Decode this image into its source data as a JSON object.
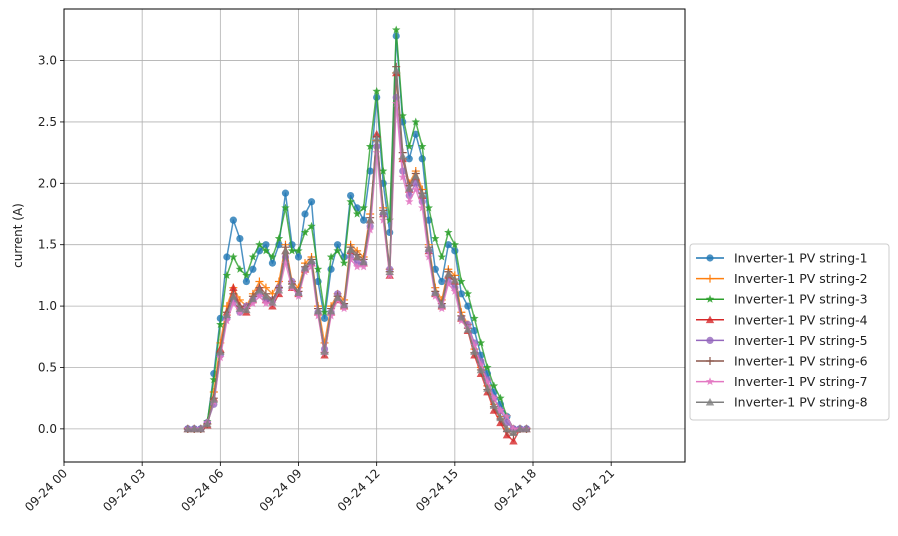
{
  "chart_data": {
    "type": "line",
    "title": "",
    "xlabel": "",
    "ylabel": "current (A)",
    "x_range": [
      "09-24 00:00",
      "09-24 23:50"
    ],
    "ylim": [
      -0.27,
      3.42
    ],
    "x_ticks": [
      {
        "hour": 0,
        "label": "09-24 00"
      },
      {
        "hour": 3,
        "label": "09-24 03"
      },
      {
        "hour": 6,
        "label": "09-24 06"
      },
      {
        "hour": 9,
        "label": "09-24 09"
      },
      {
        "hour": 12,
        "label": "09-24 12"
      },
      {
        "hour": 15,
        "label": "09-24 15"
      },
      {
        "hour": 18,
        "label": "09-24 18"
      },
      {
        "hour": 21,
        "label": "09-24 21"
      }
    ],
    "y_ticks": [
      "0.0",
      "0.5",
      "1.0",
      "1.5",
      "2.0",
      "2.5",
      "3.0"
    ],
    "grid": true,
    "legend": "outside-right",
    "sample_interval_minutes": 5,
    "x_times": [
      "04:45",
      "05:00",
      "05:15",
      "05:30",
      "05:45",
      "06:00",
      "06:15",
      "06:30",
      "06:45",
      "07:00",
      "07:15",
      "07:30",
      "07:45",
      "08:00",
      "08:15",
      "08:30",
      "08:45",
      "09:00",
      "09:15",
      "09:30",
      "09:45",
      "10:00",
      "10:15",
      "10:30",
      "10:45",
      "11:00",
      "11:15",
      "11:30",
      "11:45",
      "12:00",
      "12:15",
      "12:30",
      "12:45",
      "13:00",
      "13:15",
      "13:30",
      "13:45",
      "14:00",
      "14:15",
      "14:30",
      "14:45",
      "15:00",
      "15:15",
      "15:30",
      "15:45",
      "16:00",
      "16:15",
      "16:30",
      "16:45",
      "17:00",
      "17:15",
      "17:30",
      "17:45"
    ],
    "series": [
      {
        "name": "Inverter-1 PV string-1",
        "color": "#1f77b4",
        "marker": "circle",
        "values": [
          0.0,
          0.0,
          0.0,
          0.05,
          0.45,
          0.9,
          1.4,
          1.7,
          1.55,
          1.2,
          1.3,
          1.45,
          1.5,
          1.35,
          1.5,
          1.92,
          1.5,
          1.4,
          1.75,
          1.85,
          1.2,
          0.9,
          1.3,
          1.5,
          1.4,
          1.9,
          1.8,
          1.7,
          2.1,
          2.7,
          2.0,
          1.6,
          3.2,
          2.5,
          2.2,
          2.4,
          2.2,
          1.7,
          1.3,
          1.2,
          1.5,
          1.45,
          1.1,
          1.0,
          0.8,
          0.6,
          0.45,
          0.3,
          0.2,
          0.1,
          0.0,
          0.0,
          0.0
        ]
      },
      {
        "name": "Inverter-1 PV string-2",
        "color": "#ff7f0e",
        "marker": "plus",
        "values": [
          0.0,
          0.0,
          0.0,
          0.04,
          0.3,
          0.7,
          1.0,
          1.15,
          1.05,
          1.0,
          1.1,
          1.2,
          1.15,
          1.1,
          1.2,
          1.5,
          1.2,
          1.15,
          1.35,
          1.4,
          1.0,
          0.7,
          1.0,
          1.1,
          1.05,
          1.5,
          1.45,
          1.4,
          1.75,
          2.35,
          1.8,
          1.3,
          2.9,
          2.2,
          2.0,
          2.1,
          1.95,
          1.5,
          1.15,
          1.05,
          1.3,
          1.25,
          0.95,
          0.85,
          0.65,
          0.5,
          0.35,
          0.2,
          0.1,
          0.0,
          0.0,
          0.0,
          0.0
        ]
      },
      {
        "name": "Inverter-1 PV string-3",
        "color": "#2ca02c",
        "marker": "star",
        "values": [
          0.0,
          0.0,
          0.0,
          0.06,
          0.4,
          0.85,
          1.25,
          1.4,
          1.3,
          1.25,
          1.4,
          1.5,
          1.45,
          1.4,
          1.55,
          1.8,
          1.45,
          1.45,
          1.6,
          1.65,
          1.3,
          0.95,
          1.4,
          1.45,
          1.35,
          1.85,
          1.75,
          1.8,
          2.3,
          2.75,
          2.1,
          1.7,
          3.25,
          2.55,
          2.3,
          2.5,
          2.3,
          1.8,
          1.55,
          1.4,
          1.6,
          1.5,
          1.2,
          1.1,
          0.9,
          0.7,
          0.5,
          0.35,
          0.25,
          0.1,
          0.0,
          0.0,
          0.0
        ]
      },
      {
        "name": "Inverter-1 PV string-4",
        "color": "#d62728",
        "marker": "triangle",
        "values": [
          0.0,
          0.0,
          0.0,
          0.03,
          0.25,
          0.65,
          0.95,
          1.15,
          1.0,
          0.95,
          1.05,
          1.15,
          1.05,
          1.0,
          1.1,
          1.45,
          1.15,
          1.1,
          1.3,
          1.35,
          0.95,
          0.6,
          0.95,
          1.05,
          1.0,
          1.45,
          1.4,
          1.35,
          1.7,
          2.4,
          1.75,
          1.25,
          2.9,
          2.2,
          1.95,
          2.05,
          1.9,
          1.45,
          1.1,
          1.0,
          1.25,
          1.2,
          0.9,
          0.8,
          0.6,
          0.45,
          0.3,
          0.15,
          0.05,
          -0.05,
          -0.1,
          0.0,
          0.0
        ]
      },
      {
        "name": "Inverter-1 PV string-5",
        "color": "#9467bd",
        "marker": "circle",
        "values": [
          0.0,
          0.0,
          0.0,
          0.05,
          0.2,
          0.6,
          0.9,
          1.05,
          0.95,
          1.0,
          1.05,
          1.1,
          1.05,
          1.05,
          1.15,
          1.4,
          1.2,
          1.1,
          1.3,
          1.35,
          0.95,
          0.65,
          0.95,
          1.1,
          1.0,
          1.4,
          1.35,
          1.35,
          1.65,
          2.3,
          1.75,
          1.3,
          2.7,
          2.1,
          1.9,
          2.0,
          1.85,
          1.45,
          1.1,
          1.0,
          1.2,
          1.15,
          0.9,
          0.85,
          0.7,
          0.55,
          0.4,
          0.25,
          0.15,
          0.05,
          0.0,
          0.0,
          0.0
        ]
      },
      {
        "name": "Inverter-1 PV string-6",
        "color": "#8c564b",
        "marker": "plus",
        "values": [
          0.0,
          0.0,
          0.0,
          0.04,
          0.25,
          0.62,
          0.95,
          1.1,
          1.0,
          0.98,
          1.08,
          1.15,
          1.1,
          1.05,
          1.15,
          1.48,
          1.18,
          1.12,
          1.32,
          1.38,
          0.98,
          0.62,
          0.98,
          1.08,
          1.02,
          1.48,
          1.42,
          1.38,
          1.72,
          2.38,
          1.78,
          1.28,
          2.95,
          2.25,
          1.98,
          2.08,
          1.92,
          1.48,
          1.12,
          1.02,
          1.28,
          1.22,
          0.92,
          0.82,
          0.62,
          0.48,
          0.32,
          0.18,
          0.08,
          -0.02,
          -0.05,
          0.0,
          0.0
        ]
      },
      {
        "name": "Inverter-1 PV string-7",
        "color": "#e377c2",
        "marker": "star",
        "values": [
          0.0,
          0.0,
          0.0,
          0.05,
          0.22,
          0.58,
          0.88,
          1.02,
          0.95,
          0.98,
          1.02,
          1.08,
          1.02,
          1.02,
          1.12,
          1.35,
          1.15,
          1.08,
          1.28,
          1.32,
          0.92,
          0.62,
          0.92,
          1.05,
          0.98,
          1.38,
          1.32,
          1.32,
          1.62,
          2.25,
          1.7,
          1.25,
          2.65,
          2.05,
          1.85,
          1.95,
          1.8,
          1.4,
          1.08,
          0.98,
          1.18,
          1.12,
          0.88,
          0.82,
          0.68,
          0.52,
          0.38,
          0.25,
          0.15,
          0.1,
          0.0,
          0.0,
          0.0
        ]
      },
      {
        "name": "Inverter-1 PV string-8",
        "color": "#7f7f7f",
        "marker": "triangle",
        "values": [
          0.0,
          0.0,
          0.0,
          0.04,
          0.24,
          0.63,
          0.93,
          1.08,
          0.98,
          0.97,
          1.06,
          1.13,
          1.08,
          1.03,
          1.13,
          1.45,
          1.17,
          1.11,
          1.31,
          1.37,
          0.96,
          0.63,
          0.96,
          1.07,
          1.01,
          1.46,
          1.4,
          1.36,
          1.7,
          2.36,
          1.77,
          1.28,
          2.92,
          2.22,
          1.96,
          2.06,
          1.91,
          1.47,
          1.11,
          1.01,
          1.26,
          1.21,
          0.91,
          0.81,
          0.63,
          0.48,
          0.33,
          0.19,
          0.09,
          0.0,
          -0.03,
          0.0,
          0.0
        ]
      }
    ]
  }
}
